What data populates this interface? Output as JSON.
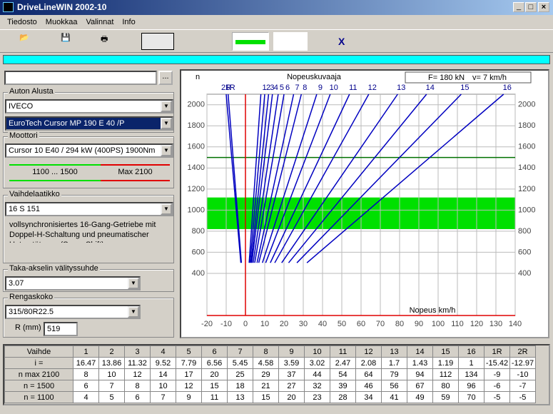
{
  "window": {
    "title": "DriveLineWIN 2002-10"
  },
  "menu": [
    "Tiedosto",
    "Muokkaa",
    "Valinnat",
    "Info"
  ],
  "toolbar": {
    "close_label": "X"
  },
  "left_panel": {
    "file_button": "...",
    "chassis": {
      "label": "Auton Alusta",
      "make": "IVECO",
      "model": "EuroTech Cursor MP 190 E 40 /P"
    },
    "engine": {
      "label": "Moottori",
      "model": "Cursor 10 E40 / 294 kW (400PS) 1900Nm",
      "range": "1100 ... 1500",
      "max": "Max 2100"
    },
    "gearbox": {
      "label": "Vaihdelaatikko",
      "model": "16 S 151",
      "description": "vollsynchronisiertes 16-Gang-Getriebe mit Doppel-H-Schaltung und pneumatischer Unterstützung (Servo Shift)"
    },
    "axle": {
      "label": "Taka-akselin välityssuhde",
      "ratio": "3.07"
    },
    "tyre": {
      "label": "Rengaskoko",
      "size": "315/80R22.5",
      "radius_label": "R (mm)",
      "radius": "519"
    }
  },
  "chart_data": {
    "type": "line",
    "title": "Nopeuskuvaaja",
    "ylabel": "n",
    "xlabel": "Nopeus km/h",
    "force": "F= 180 kN",
    "speed": "v= 7 km/h",
    "xlim": [
      -20,
      140
    ],
    "ylim": [
      0,
      2100
    ],
    "xticks": [
      -20,
      -10,
      0,
      10,
      20,
      30,
      40,
      50,
      60,
      70,
      80,
      90,
      100,
      110,
      120,
      130,
      140
    ],
    "yticks": [
      400,
      600,
      800,
      1000,
      1200,
      1400,
      1600,
      1800,
      2000
    ],
    "grid": true,
    "band": [
      820,
      1120
    ],
    "band_color": "#00e000",
    "reference_rpm": 1500,
    "reference_color": "#007000",
    "axis_color": "#e00000",
    "series": [
      {
        "name": "2R",
        "color": "#0000c0",
        "x": [
          -2.4,
          -10
        ],
        "values": [
          500,
          2100
        ]
      },
      {
        "name": "1R",
        "color": "#0000c0",
        "x": [
          -2.1,
          -9
        ],
        "values": [
          500,
          2100
        ]
      },
      {
        "name": "1",
        "color": "#0000c0",
        "x": [
          1.9,
          8
        ],
        "values": [
          500,
          2100
        ]
      },
      {
        "name": "2",
        "color": "#0000c0",
        "x": [
          2.4,
          10
        ],
        "values": [
          500,
          2100
        ]
      },
      {
        "name": "3",
        "color": "#0000c0",
        "x": [
          2.9,
          12
        ],
        "values": [
          500,
          2100
        ]
      },
      {
        "name": "4",
        "color": "#0000c0",
        "x": [
          3.3,
          14
        ],
        "values": [
          500,
          2100
        ]
      },
      {
        "name": "5",
        "color": "#0000c0",
        "x": [
          4,
          17
        ],
        "values": [
          500,
          2100
        ]
      },
      {
        "name": "6",
        "color": "#0000c0",
        "x": [
          4.8,
          20
        ],
        "values": [
          500,
          2100
        ]
      },
      {
        "name": "7",
        "color": "#0000c0",
        "x": [
          6,
          25
        ],
        "values": [
          500,
          2100
        ]
      },
      {
        "name": "8",
        "color": "#0000c0",
        "x": [
          6.9,
          29
        ],
        "values": [
          500,
          2100
        ]
      },
      {
        "name": "9",
        "color": "#0000c0",
        "x": [
          8.8,
          37
        ],
        "values": [
          500,
          2100
        ]
      },
      {
        "name": "10",
        "color": "#0000c0",
        "x": [
          10.5,
          44
        ],
        "values": [
          500,
          2100
        ]
      },
      {
        "name": "11",
        "color": "#0000c0",
        "x": [
          12.9,
          54
        ],
        "values": [
          500,
          2100
        ]
      },
      {
        "name": "12",
        "color": "#0000c0",
        "x": [
          15.2,
          64
        ],
        "values": [
          500,
          2100
        ]
      },
      {
        "name": "13",
        "color": "#0000c0",
        "x": [
          18.8,
          79
        ],
        "values": [
          500,
          2100
        ]
      },
      {
        "name": "14",
        "color": "#0000c0",
        "x": [
          22.4,
          94
        ],
        "values": [
          500,
          2100
        ]
      },
      {
        "name": "15",
        "color": "#0000c0",
        "x": [
          26.7,
          112
        ],
        "values": [
          500,
          2100
        ]
      },
      {
        "name": "16",
        "color": "#0000c0",
        "x": [
          31.9,
          134
        ],
        "values": [
          500,
          2100
        ]
      }
    ]
  },
  "table": {
    "header": [
      "Vaihde",
      "1",
      "2",
      "3",
      "4",
      "5",
      "6",
      "7",
      "8",
      "9",
      "10",
      "11",
      "12",
      "13",
      "14",
      "15",
      "16",
      "1R",
      "2R"
    ],
    "rows": [
      {
        "label": "i =",
        "values": [
          16.47,
          13.86,
          11.32,
          9.52,
          7.79,
          6.56,
          5.45,
          4.58,
          3.59,
          3.02,
          2.47,
          2.08,
          1.7,
          1.43,
          1.19,
          1,
          -15.42,
          -12.97
        ]
      },
      {
        "label": "n max 2100",
        "values": [
          8,
          10,
          12,
          14,
          17,
          20,
          25,
          29,
          37,
          44,
          54,
          64,
          79,
          94,
          112,
          134,
          -9,
          -10
        ]
      },
      {
        "label": "n = 1500",
        "values": [
          6,
          7,
          8,
          10,
          12,
          15,
          18,
          21,
          27,
          32,
          39,
          46,
          56,
          67,
          80,
          96,
          -6,
          -7
        ]
      },
      {
        "label": "n = 1100",
        "values": [
          4,
          5,
          6,
          7,
          9,
          11,
          13,
          15,
          20,
          23,
          28,
          34,
          41,
          49,
          59,
          70,
          -5,
          -5
        ]
      }
    ]
  }
}
